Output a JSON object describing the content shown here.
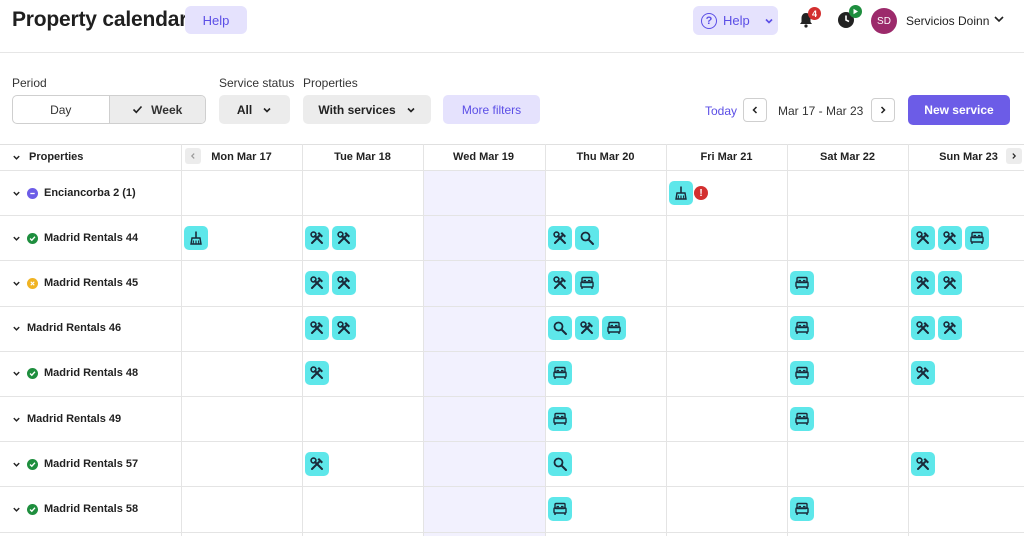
{
  "header": {
    "title": "Property calendar",
    "help_button": "Help",
    "help_menu_label": "Help",
    "notifications_count": "4",
    "user": {
      "initials": "SD",
      "name": "Servicios Doinn"
    }
  },
  "filters": {
    "period_label": "Period",
    "period_options": [
      "Day",
      "Week"
    ],
    "period_selected": "Week",
    "service_status_label": "Service status",
    "service_status_value": "All",
    "properties_label": "Properties",
    "properties_value": "With services",
    "more_filters": "More filters",
    "today": "Today",
    "date_range": "Mar 17 - Mar 23",
    "new_service": "New service"
  },
  "calendar": {
    "properties_header": "Properties",
    "days": [
      "Mon Mar 17",
      "Tue Mar 18",
      "Wed Mar 19",
      "Thu Mar 20",
      "Fri Mar 21",
      "Sat Mar 22",
      "Sun Mar 23"
    ],
    "rows": [
      {
        "name": "Enciancorba 2 (1)",
        "status": "purple"
      },
      {
        "name": "Madrid Rentals 44",
        "status": "green"
      },
      {
        "name": "Madrid Rentals 45",
        "status": "orange"
      },
      {
        "name": "Madrid Rentals 46",
        "status": "none"
      },
      {
        "name": "Madrid Rentals 48",
        "status": "green"
      },
      {
        "name": "Madrid Rentals 49",
        "status": "none"
      },
      {
        "name": "Madrid Rentals 57",
        "status": "green"
      },
      {
        "name": "Madrid Rentals 58",
        "status": "green"
      }
    ],
    "services": [
      {
        "row": 0,
        "day": 4,
        "icons": [
          "broom-icon"
        ],
        "alert": "!"
      },
      {
        "row": 1,
        "day": 0,
        "icons": [
          "broom-icon"
        ]
      },
      {
        "row": 1,
        "day": 1,
        "icons": [
          "tools-icon",
          "tools-icon"
        ]
      },
      {
        "row": 1,
        "day": 3,
        "icons": [
          "tools-icon",
          "magnifier-icon"
        ]
      },
      {
        "row": 1,
        "day": 6,
        "icons": [
          "tools-icon",
          "tools-icon",
          "bed-icon"
        ]
      },
      {
        "row": 2,
        "day": 1,
        "icons": [
          "tools-icon",
          "tools-icon"
        ]
      },
      {
        "row": 2,
        "day": 3,
        "icons": [
          "tools-icon",
          "bed-icon"
        ]
      },
      {
        "row": 2,
        "day": 5,
        "icons": [
          "bed-icon"
        ]
      },
      {
        "row": 2,
        "day": 6,
        "icons": [
          "tools-icon",
          "tools-icon"
        ]
      },
      {
        "row": 3,
        "day": 1,
        "icons": [
          "tools-icon",
          "tools-icon"
        ]
      },
      {
        "row": 3,
        "day": 3,
        "icons": [
          "magnifier-icon",
          "tools-icon",
          "bed-icon"
        ]
      },
      {
        "row": 3,
        "day": 5,
        "icons": [
          "bed-icon"
        ]
      },
      {
        "row": 3,
        "day": 6,
        "icons": [
          "tools-icon",
          "tools-icon"
        ]
      },
      {
        "row": 4,
        "day": 1,
        "icons": [
          "tools-icon"
        ]
      },
      {
        "row": 4,
        "day": 3,
        "icons": [
          "bed-icon"
        ]
      },
      {
        "row": 4,
        "day": 5,
        "icons": [
          "bed-icon"
        ]
      },
      {
        "row": 4,
        "day": 6,
        "icons": [
          "tools-icon"
        ]
      },
      {
        "row": 5,
        "day": 3,
        "icons": [
          "bed-icon"
        ]
      },
      {
        "row": 5,
        "day": 5,
        "icons": [
          "bed-icon"
        ]
      },
      {
        "row": 6,
        "day": 1,
        "icons": [
          "tools-icon"
        ]
      },
      {
        "row": 6,
        "day": 3,
        "icons": [
          "magnifier-icon"
        ]
      },
      {
        "row": 6,
        "day": 6,
        "icons": [
          "tools-icon"
        ]
      },
      {
        "row": 7,
        "day": 3,
        "icons": [
          "bed-icon"
        ]
      },
      {
        "row": 7,
        "day": 5,
        "icons": [
          "bed-icon"
        ]
      }
    ]
  },
  "colors": {
    "accent": "#6c5ce7",
    "service_chip": "#5ee7ea",
    "status_green": "#1e8e3e",
    "status_orange": "#f0b323",
    "alert_red": "#d32f2f"
  }
}
